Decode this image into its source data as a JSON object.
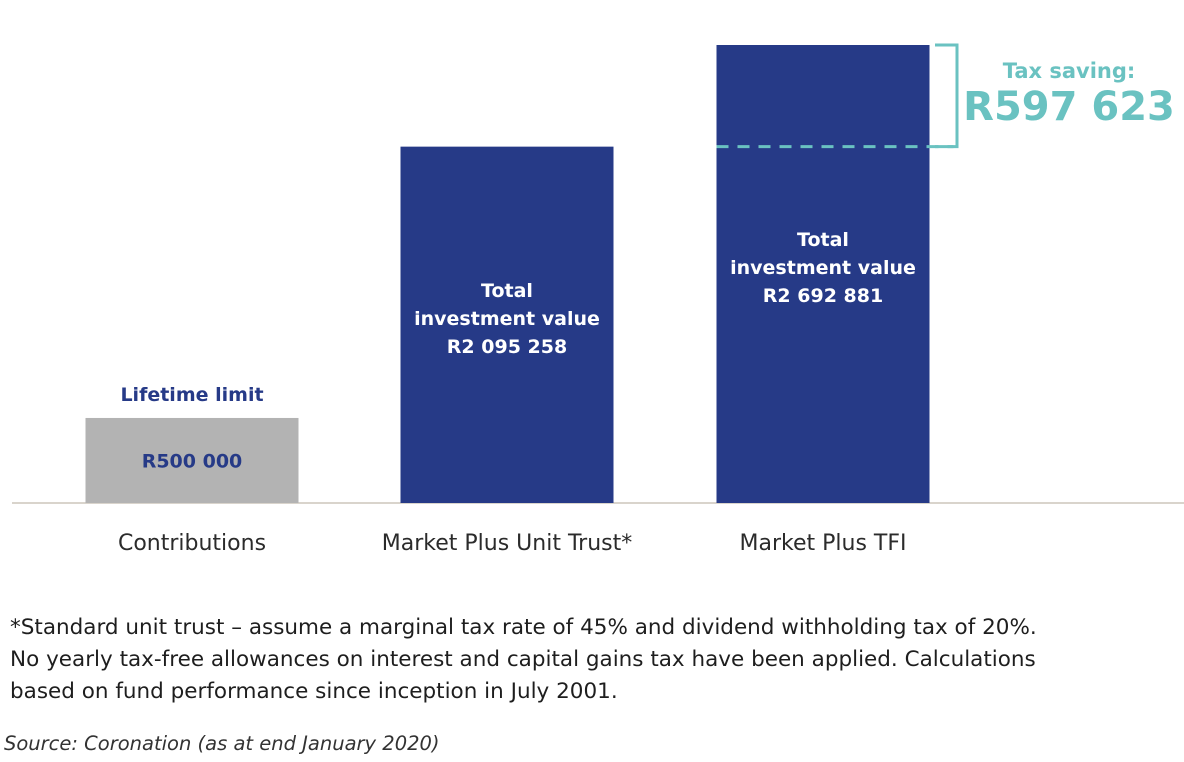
{
  "chart_data": {
    "type": "bar",
    "categories": [
      "Contributions",
      "Market Plus Unit Trust*",
      "Market Plus TFI"
    ],
    "values": [
      500000,
      2095258,
      2692881
    ],
    "value_labels": [
      "R500 000",
      "R2 095 258",
      "R2 692 881"
    ],
    "bar_text": {
      "contributions_header": "Lifetime limit",
      "total_line1": "Total",
      "total_line2": "investment value"
    },
    "annotation": {
      "label": "Tax saving:",
      "value": "R597 623",
      "amount": 597623
    },
    "ylim": [
      0,
      2692881
    ],
    "grid": false,
    "colors": {
      "contributions": "#b3b3b3",
      "bars": "#263a87",
      "accent": "#6ac2c1",
      "axis": "#d9d4cc"
    }
  },
  "footnote": [
    "*Standard unit trust – assume a marginal tax rate of 45% and dividend withholding tax of 20%.",
    "No yearly tax-free allowances on interest and capital gains tax have been applied. Calculations",
    "based on fund performance since inception in July 2001."
  ],
  "source": "Source: Coronation (as at end January 2020)"
}
